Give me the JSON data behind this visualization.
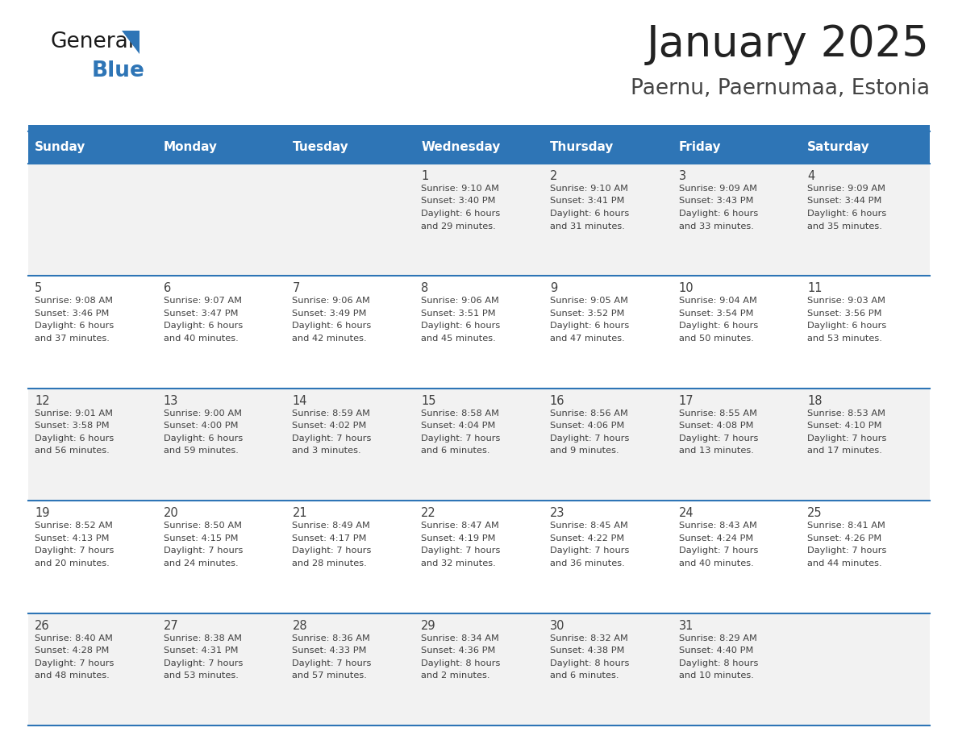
{
  "title": "January 2025",
  "subtitle": "Paernu, Paernumaa, Estonia",
  "days_of_week": [
    "Sunday",
    "Monday",
    "Tuesday",
    "Wednesday",
    "Thursday",
    "Friday",
    "Saturday"
  ],
  "header_bg": "#2e75b6",
  "header_text_color": "#ffffff",
  "cell_bg_odd": "#f2f2f2",
  "cell_bg_even": "#ffffff",
  "border_color": "#2e75b6",
  "text_color": "#404040",
  "title_color": "#222222",
  "subtitle_color": "#444444",
  "logo_black": "#1a1a1a",
  "logo_blue": "#2e75b6",
  "weeks": [
    [
      {
        "day": null,
        "sunrise": null,
        "sunset": null,
        "daylight": null
      },
      {
        "day": null,
        "sunrise": null,
        "sunset": null,
        "daylight": null
      },
      {
        "day": null,
        "sunrise": null,
        "sunset": null,
        "daylight": null
      },
      {
        "day": 1,
        "sunrise": "9:10 AM",
        "sunset": "3:40 PM",
        "daylight": "6 hours and 29 minutes."
      },
      {
        "day": 2,
        "sunrise": "9:10 AM",
        "sunset": "3:41 PM",
        "daylight": "6 hours and 31 minutes."
      },
      {
        "day": 3,
        "sunrise": "9:09 AM",
        "sunset": "3:43 PM",
        "daylight": "6 hours and 33 minutes."
      },
      {
        "day": 4,
        "sunrise": "9:09 AM",
        "sunset": "3:44 PM",
        "daylight": "6 hours and 35 minutes."
      }
    ],
    [
      {
        "day": 5,
        "sunrise": "9:08 AM",
        "sunset": "3:46 PM",
        "daylight": "6 hours and 37 minutes."
      },
      {
        "day": 6,
        "sunrise": "9:07 AM",
        "sunset": "3:47 PM",
        "daylight": "6 hours and 40 minutes."
      },
      {
        "day": 7,
        "sunrise": "9:06 AM",
        "sunset": "3:49 PM",
        "daylight": "6 hours and 42 minutes."
      },
      {
        "day": 8,
        "sunrise": "9:06 AM",
        "sunset": "3:51 PM",
        "daylight": "6 hours and 45 minutes."
      },
      {
        "day": 9,
        "sunrise": "9:05 AM",
        "sunset": "3:52 PM",
        "daylight": "6 hours and 47 minutes."
      },
      {
        "day": 10,
        "sunrise": "9:04 AM",
        "sunset": "3:54 PM",
        "daylight": "6 hours and 50 minutes."
      },
      {
        "day": 11,
        "sunrise": "9:03 AM",
        "sunset": "3:56 PM",
        "daylight": "6 hours and 53 minutes."
      }
    ],
    [
      {
        "day": 12,
        "sunrise": "9:01 AM",
        "sunset": "3:58 PM",
        "daylight": "6 hours and 56 minutes."
      },
      {
        "day": 13,
        "sunrise": "9:00 AM",
        "sunset": "4:00 PM",
        "daylight": "6 hours and 59 minutes."
      },
      {
        "day": 14,
        "sunrise": "8:59 AM",
        "sunset": "4:02 PM",
        "daylight": "7 hours and 3 minutes."
      },
      {
        "day": 15,
        "sunrise": "8:58 AM",
        "sunset": "4:04 PM",
        "daylight": "7 hours and 6 minutes."
      },
      {
        "day": 16,
        "sunrise": "8:56 AM",
        "sunset": "4:06 PM",
        "daylight": "7 hours and 9 minutes."
      },
      {
        "day": 17,
        "sunrise": "8:55 AM",
        "sunset": "4:08 PM",
        "daylight": "7 hours and 13 minutes."
      },
      {
        "day": 18,
        "sunrise": "8:53 AM",
        "sunset": "4:10 PM",
        "daylight": "7 hours and 17 minutes."
      }
    ],
    [
      {
        "day": 19,
        "sunrise": "8:52 AM",
        "sunset": "4:13 PM",
        "daylight": "7 hours and 20 minutes."
      },
      {
        "day": 20,
        "sunrise": "8:50 AM",
        "sunset": "4:15 PM",
        "daylight": "7 hours and 24 minutes."
      },
      {
        "day": 21,
        "sunrise": "8:49 AM",
        "sunset": "4:17 PM",
        "daylight": "7 hours and 28 minutes."
      },
      {
        "day": 22,
        "sunrise": "8:47 AM",
        "sunset": "4:19 PM",
        "daylight": "7 hours and 32 minutes."
      },
      {
        "day": 23,
        "sunrise": "8:45 AM",
        "sunset": "4:22 PM",
        "daylight": "7 hours and 36 minutes."
      },
      {
        "day": 24,
        "sunrise": "8:43 AM",
        "sunset": "4:24 PM",
        "daylight": "7 hours and 40 minutes."
      },
      {
        "day": 25,
        "sunrise": "8:41 AM",
        "sunset": "4:26 PM",
        "daylight": "7 hours and 44 minutes."
      }
    ],
    [
      {
        "day": 26,
        "sunrise": "8:40 AM",
        "sunset": "4:28 PM",
        "daylight": "7 hours and 48 minutes."
      },
      {
        "day": 27,
        "sunrise": "8:38 AM",
        "sunset": "4:31 PM",
        "daylight": "7 hours and 53 minutes."
      },
      {
        "day": 28,
        "sunrise": "8:36 AM",
        "sunset": "4:33 PM",
        "daylight": "7 hours and 57 minutes."
      },
      {
        "day": 29,
        "sunrise": "8:34 AM",
        "sunset": "4:36 PM",
        "daylight": "8 hours and 2 minutes."
      },
      {
        "day": 30,
        "sunrise": "8:32 AM",
        "sunset": "4:38 PM",
        "daylight": "8 hours and 6 minutes."
      },
      {
        "day": 31,
        "sunrise": "8:29 AM",
        "sunset": "4:40 PM",
        "daylight": "8 hours and 10 minutes."
      },
      {
        "day": null,
        "sunrise": null,
        "sunset": null,
        "daylight": null
      }
    ]
  ]
}
